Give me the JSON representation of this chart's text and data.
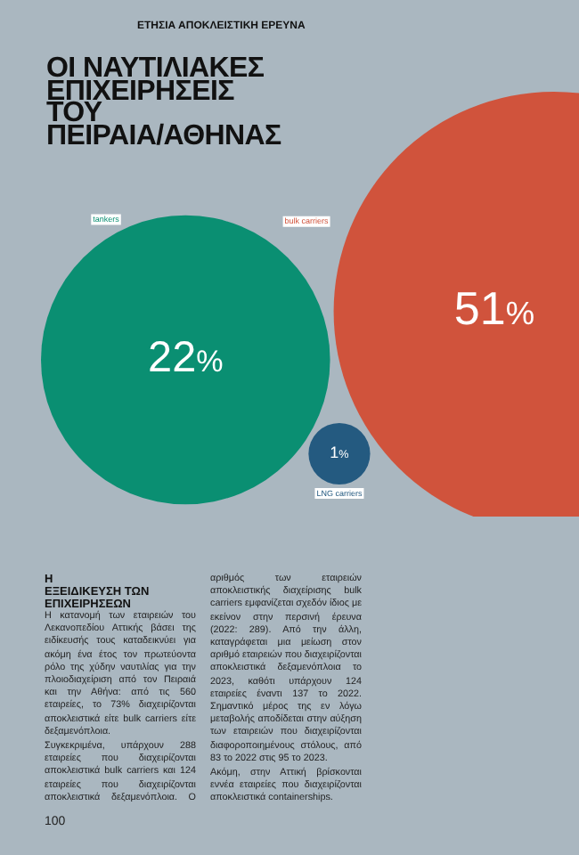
{
  "chart_data": {
    "type": "other",
    "subtitle": "ΕΤΗΣΙΑ ΑΠΟΚΛΕΙΣΤΙΚΗ ΕΡΕΥΝΑ",
    "title": "ΟΙ ΝΑΥΤΙΛΙΑΚΕΣ ΕΠΙΧΕΙΡΗΣΕΙΣ ΤΟΥ ΠΕΙΡΑΙΑ/ΑΘΗΝΑΣ",
    "categories": [
      "tankers",
      "bulk carriers",
      "LNG carriers"
    ],
    "values": [
      22,
      51,
      1
    ],
    "colors": [
      "#0a8f72",
      "#d0533c",
      "#245a80"
    ],
    "value_labels": [
      "22%",
      "51%",
      "1%"
    ],
    "legend": false,
    "annotations": [
      "Η ΕΞΕΙΔΙΚΕΥΣΗ ΤΩΝ ΕΠΙΧΕΙΡΗΣΕΩΝ",
      "Η κατανομή των εταιρειών του Λεκανοπεδίου Αττικής βάσει της ειδίκευσής τους καταδεικνύει για ακόμη ένα έτος τον πρωτεύοντα ρόλο της χύδην ναυτιλίας για την πλοιοδιαχείριση από τον Πειραιά και την Αθήνα: από τις 560 εταιρείες, το 73% διαχειρίζονται αποκλειστικά είτε bulk carriers είτε δεξαμενόπλοια.",
      "Συγκεκριμένα, υπάρχουν 288 εταιρείες που διαχειρίζονται αποκλειστικά bulk carriers και 124 εταιρείες που διαχειρίζονται αποκλειστικά δεξαμενόπλοια. Ο αριθμός των εταιρειών αποκλειστικής διαχείρισης bulk carriers εμφανίζεται σχεδόν ίδιος με εκείνον στην περσινή έρευνα (2022: 289). Από την άλλη, καταγράφεται μια μείωση στον αριθμό εταιρειών που διαχειρίζονται αποκλειστικά δεξαμενόπλοια το 2023, καθότι υπάρχουν 124 εταιρείες έναντι 137 το 2022. Σημαντικό μέρος της εν λόγω μεταβολής αποδίδεται στην αύξηση των εταιρειών που διαχειρίζονται διαφοροποιημένους στόλους, από 83 το 2022 στις 95 το 2023.",
      "Ακόμη, στην Αττική βρίσκονται εννέα εταιρείες που διαχειρίζονται αποκλειστικά containerships.",
      "100"
    ]
  }
}
